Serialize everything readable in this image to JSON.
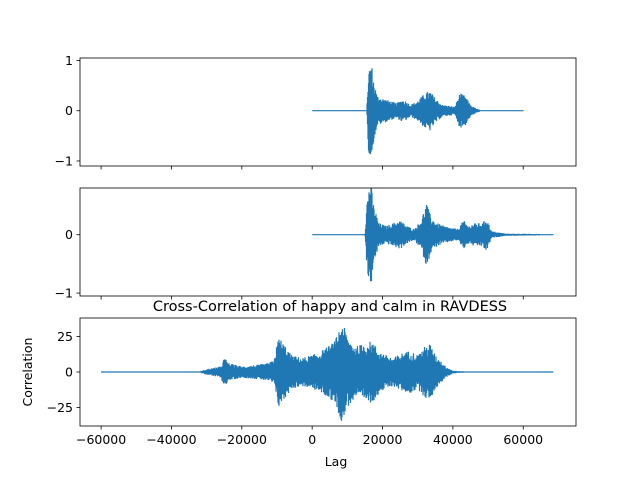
{
  "chart_data": [
    {
      "type": "line",
      "title": "",
      "xlabel": "",
      "ylabel": "",
      "xlim": [
        -66000,
        75000
      ],
      "ylim": [
        -1.1,
        1.05
      ],
      "xticks": [
        -60000,
        -40000,
        -20000,
        0,
        20000,
        40000,
        60000
      ],
      "xticklabels_visible": false,
      "yticks": [
        -1,
        0,
        1
      ],
      "yticklabels": [
        "−1",
        "0",
        "1"
      ],
      "series_color": "#1f77b4",
      "signal": {
        "x_start": 0,
        "x_end": 60000,
        "active_start": 15500,
        "active_end": 48000
      },
      "envelope": [
        [
          0,
          0.01
        ],
        [
          15500,
          0.01
        ],
        [
          16000,
          0.8
        ],
        [
          16800,
          1.0
        ],
        [
          17500,
          0.6
        ],
        [
          18500,
          0.3
        ],
        [
          20000,
          0.25
        ],
        [
          22000,
          0.2
        ],
        [
          24000,
          0.15
        ],
        [
          25500,
          0.22
        ],
        [
          26500,
          0.2
        ],
        [
          28000,
          0.12
        ],
        [
          30000,
          0.2
        ],
        [
          32000,
          0.35
        ],
        [
          33500,
          0.4
        ],
        [
          35000,
          0.25
        ],
        [
          37000,
          0.12
        ],
        [
          39000,
          0.1
        ],
        [
          40500,
          0.08
        ],
        [
          42000,
          0.35
        ],
        [
          43500,
          0.3
        ],
        [
          45000,
          0.12
        ],
        [
          46500,
          0.05
        ],
        [
          48000,
          0.01
        ],
        [
          60000,
          0.01
        ]
      ]
    },
    {
      "type": "line",
      "title": "",
      "xlabel": "",
      "ylabel": "",
      "xlim": [
        -66000,
        75000
      ],
      "ylim": [
        -1.05,
        0.8
      ],
      "xticks": [
        -60000,
        -40000,
        -20000,
        0,
        20000,
        40000,
        60000
      ],
      "xticklabels_visible": false,
      "yticks": [
        -1,
        0
      ],
      "yticklabels": [
        "−1",
        "0"
      ],
      "series_color": "#1f77b4",
      "signal": {
        "x_start": 0,
        "x_end": 68500,
        "active_start": 15000,
        "active_end": 55000
      },
      "envelope": [
        [
          0,
          0.01
        ],
        [
          15000,
          0.01
        ],
        [
          15600,
          0.6
        ],
        [
          16500,
          1.0
        ],
        [
          17500,
          0.5
        ],
        [
          19000,
          0.2
        ],
        [
          21000,
          0.15
        ],
        [
          23000,
          0.2
        ],
        [
          25000,
          0.25
        ],
        [
          27000,
          0.15
        ],
        [
          29000,
          0.1
        ],
        [
          31000,
          0.25
        ],
        [
          32500,
          0.55
        ],
        [
          33800,
          0.3
        ],
        [
          35500,
          0.2
        ],
        [
          37500,
          0.15
        ],
        [
          39500,
          0.12
        ],
        [
          41500,
          0.1
        ],
        [
          43000,
          0.25
        ],
        [
          44500,
          0.15
        ],
        [
          46000,
          0.2
        ],
        [
          48500,
          0.2
        ],
        [
          49500,
          0.3
        ],
        [
          51000,
          0.06
        ],
        [
          55000,
          0.02
        ],
        [
          68500,
          0.01
        ]
      ]
    },
    {
      "type": "line",
      "title": "Cross-Correlation of happy and calm in RAVDESS",
      "xlabel": "Lag",
      "ylabel": "Correlation",
      "xlim": [
        -66000,
        75000
      ],
      "ylim": [
        -38,
        38
      ],
      "xticks": [
        -60000,
        -40000,
        -20000,
        0,
        20000,
        40000,
        60000
      ],
      "xticklabels": [
        "−60000",
        "−40000",
        "−20000",
        "0",
        "20000",
        "40000",
        "60000"
      ],
      "yticks": [
        -25,
        0,
        25
      ],
      "yticklabels": [
        "−25",
        "0",
        "25"
      ],
      "series_color": "#1f77b4",
      "signal": {
        "x_start": -60000,
        "x_end": 68500,
        "active_start": -32000,
        "active_end": 38000
      },
      "envelope": [
        [
          -60000,
          0.3
        ],
        [
          -32000,
          0.3
        ],
        [
          -30000,
          2
        ],
        [
          -26000,
          4
        ],
        [
          -25000,
          10
        ],
        [
          -23500,
          6
        ],
        [
          -20000,
          4
        ],
        [
          -16000,
          5
        ],
        [
          -13000,
          6
        ],
        [
          -11000,
          8
        ],
        [
          -9500,
          25
        ],
        [
          -8000,
          20
        ],
        [
          -6000,
          12
        ],
        [
          -3000,
          10
        ],
        [
          0,
          12
        ],
        [
          2000,
          14
        ],
        [
          4500,
          18
        ],
        [
          6500,
          22
        ],
        [
          8500,
          36
        ],
        [
          10000,
          25
        ],
        [
          12500,
          18
        ],
        [
          14500,
          20
        ],
        [
          17000,
          22
        ],
        [
          19000,
          15
        ],
        [
          21000,
          12
        ],
        [
          23000,
          10
        ],
        [
          26000,
          14
        ],
        [
          28000,
          15
        ],
        [
          30000,
          12
        ],
        [
          32000,
          18
        ],
        [
          33500,
          20
        ],
        [
          35000,
          12
        ],
        [
          36500,
          8
        ],
        [
          38000,
          4
        ],
        [
          40000,
          1
        ],
        [
          44000,
          0.3
        ],
        [
          68500,
          0.3
        ]
      ]
    }
  ]
}
